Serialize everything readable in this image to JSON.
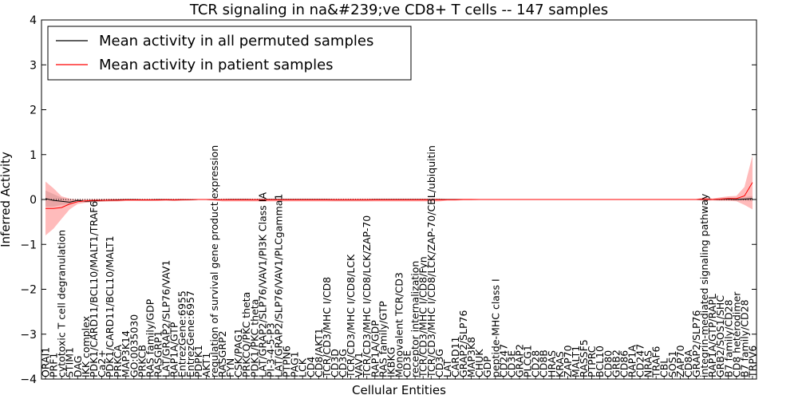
{
  "chart_data": {
    "type": "line",
    "title": "TCR signaling in na&#239;ve CD8+ T cells -- 147 samples",
    "xlabel": "Cellular Entities",
    "ylabel": "Inferred Activity",
    "ylim": [
      -4,
      4
    ],
    "yticks": [
      -4,
      -3,
      -2,
      -1,
      0,
      1,
      2,
      3,
      4
    ],
    "legend_position": "top-left",
    "categories": [
      "ORAI1",
      "PRF1",
      "cytotoxic T cell degranulation",
      "STIM1",
      "DAG",
      "IKK complex",
      "PDK1/CARD11/BCL10/MALT1/TRAF6",
      "Ca2+",
      "PDK1/CARD11/BCL10/MALT1",
      "PRKCA",
      "MAP3K14",
      "GO:0035030",
      "PRKCB",
      "RAS family/GDP",
      "RASGRP1",
      "LAT/GRAP2/SLP76/VAV1",
      "RAP1A/GTP",
      "EntrezGene:6955",
      "EntrezGene:6957",
      "PDPK1",
      "AKT1",
      "regulation of survival gene product expression",
      "RASGRP2",
      "FYN",
      "CSK/PAG1",
      "PRKCQ/PKC theta",
      "PDK1/PKC theta",
      "LAT/GRAP2/SLP76/VAV1/PI3K Class IA",
      "PI-3-4-5-P3",
      "LAT/GRAP2/SLP76/VAV1/PLCgamma1",
      "PTPN6",
      "PAG1",
      "LCK",
      "CD4",
      "CD8/AKT1",
      "TCR/CD3/MHC I/CD8",
      "CD3D",
      "CD3G",
      "TCR/CD3/MHC I/CD8/LCK",
      "VAV1",
      "TCR/CD3/MHC I/CD8/LCK/ZAP-70",
      "RAP1A/GDP",
      "RAS family/GTP",
      "IKBKG",
      "Monovalent TCR/CD3",
      "CD3E",
      "receptor internalization",
      "TCR/CD3/MHC I/CD8/Fyn",
      "TCR/CD3/MHC I/CD8/LCK/ZAP-70/CBL/ubiquitin",
      "CD3G",
      "LAT",
      "CARD11",
      "GRAP2/SLP76",
      "MAP3K8",
      "CHUK",
      "GDP",
      "peptide-MHC class I",
      "CD247",
      "CD3E",
      "GRAP2",
      "PLCG1",
      "CD28",
      "CD8B",
      "HRAS",
      "KRAS",
      "ZAP70",
      "MALT1",
      "RASSF5",
      "PTPRC",
      "BCL10",
      "CD80",
      "GRB2",
      "CD86",
      "RAP1A",
      "CD247",
      "NRAS",
      "TRAF6",
      "CBL",
      "SOS1",
      "ZAP70",
      "CD8A",
      "GRAP2/SLP76",
      "integrin-mediated signaling pathway",
      "RAP1A/GTP/RAPL",
      "GRB2/SOS1/SHC",
      "B7 family/CD28",
      "CD8 heterodimer",
      "B7 family/CD28",
      "TRPV6"
    ],
    "series": [
      {
        "name": "Mean activity in all permuted samples",
        "color": "#000000",
        "values": [
          0.02,
          -0.02,
          -0.04,
          -0.06,
          -0.02,
          -0.04,
          -0.03,
          -0.02,
          -0.015,
          -0.01,
          -0.005,
          -0.005,
          -0.01,
          -0.01,
          -0.005,
          -0.005,
          -0.01,
          -0.005,
          -0.005,
          0,
          0,
          -0.005,
          -0.01,
          -0.005,
          -0.005,
          -0.005,
          -0.01,
          -0.005,
          -0.005,
          -0.005,
          -0.005,
          -0.005,
          -0.005,
          -0.005,
          -0.005,
          -0.005,
          -0.01,
          -0.01,
          -0.01,
          -0.01,
          -0.01,
          -0.005,
          -0.005,
          -0.005,
          -0.005,
          -0.005,
          -0.005,
          -0.005,
          -0.005,
          -0.005,
          0,
          0,
          0,
          0,
          0,
          0,
          0,
          0,
          0,
          0,
          0,
          0,
          0,
          0,
          0,
          0,
          0,
          0,
          0,
          0,
          0,
          0,
          0,
          0,
          0,
          0,
          0,
          0,
          0,
          0,
          0,
          0,
          0.005,
          0,
          0.005,
          0.01,
          0,
          0.01,
          0.02
        ],
        "band": [
          0.18,
          0.14,
          0.08,
          0.05,
          0.03,
          0.03,
          0.03,
          0.03,
          0.025,
          0.02,
          0.02,
          0.02,
          0.02,
          0.02,
          0.02,
          0.015,
          0.02,
          0.015,
          0.01,
          0.005,
          0.005,
          0.01,
          0.015,
          0.015,
          0.015,
          0.015,
          0.015,
          0.015,
          0.015,
          0.015,
          0.015,
          0.015,
          0.015,
          0.015,
          0.015,
          0.015,
          0.02,
          0.02,
          0.02,
          0.02,
          0.02,
          0.015,
          0.015,
          0.015,
          0.015,
          0.015,
          0.015,
          0.015,
          0.015,
          0.015,
          0.01,
          0.01,
          0.01,
          0.01,
          0.01,
          0.01,
          0.005,
          0.005,
          0.005,
          0.005,
          0.005,
          0.005,
          0.005,
          0.005,
          0.005,
          0.005,
          0.005,
          0.005,
          0.005,
          0.005,
          0.005,
          0.005,
          0.005,
          0.005,
          0.005,
          0.005,
          0.005,
          0.005,
          0.005,
          0.005,
          0.005,
          0.005,
          0.02,
          0.01,
          0.02,
          0.03,
          0.02,
          0.04,
          0.06
        ]
      },
      {
        "name": "Mean activity in patient samples",
        "color": "#ff0000",
        "values": [
          -0.2,
          -0.2,
          -0.18,
          -0.1,
          -0.05,
          -0.03,
          -0.02,
          -0.02,
          -0.015,
          -0.015,
          -0.01,
          -0.01,
          -0.01,
          -0.01,
          -0.01,
          -0.005,
          -0.01,
          -0.005,
          -0.005,
          0,
          0,
          -0.005,
          -0.01,
          -0.01,
          -0.01,
          -0.01,
          -0.01,
          -0.01,
          -0.01,
          -0.01,
          -0.01,
          -0.01,
          -0.01,
          -0.01,
          -0.01,
          -0.01,
          -0.01,
          -0.01,
          -0.01,
          -0.01,
          -0.01,
          -0.01,
          -0.01,
          -0.01,
          -0.01,
          -0.01,
          -0.01,
          -0.01,
          -0.01,
          -0.01,
          -0.005,
          -0.005,
          0,
          0,
          0,
          0,
          0,
          0,
          0,
          0,
          0,
          0,
          0,
          0,
          0,
          0,
          0,
          0,
          0,
          0,
          0,
          0,
          0,
          0,
          0,
          0,
          0,
          0,
          0,
          0,
          0,
          0,
          0.01,
          0,
          0.01,
          0.02,
          0.02,
          0.08,
          0.38
        ],
        "band": [
          0.6,
          0.45,
          0.25,
          0.12,
          0.05,
          0.04,
          0.03,
          0.03,
          0.03,
          0.03,
          0.025,
          0.025,
          0.025,
          0.025,
          0.025,
          0.02,
          0.025,
          0.02,
          0.015,
          0.01,
          0.01,
          0.015,
          0.035,
          0.035,
          0.035,
          0.035,
          0.035,
          0.035,
          0.035,
          0.035,
          0.035,
          0.035,
          0.035,
          0.035,
          0.035,
          0.035,
          0.035,
          0.035,
          0.035,
          0.035,
          0.035,
          0.035,
          0.035,
          0.035,
          0.035,
          0.035,
          0.035,
          0.035,
          0.035,
          0.035,
          0.02,
          0.02,
          0.015,
          0.015,
          0.01,
          0.01,
          0.01,
          0.01,
          0.01,
          0.01,
          0.01,
          0.01,
          0.01,
          0.01,
          0.01,
          0.01,
          0.01,
          0.01,
          0.01,
          0.01,
          0.01,
          0.01,
          0.01,
          0.01,
          0.01,
          0.01,
          0.01,
          0.01,
          0.01,
          0.01,
          0.01,
          0.01,
          0.04,
          0.02,
          0.04,
          0.05,
          0.06,
          0.2,
          0.6
        ]
      }
    ]
  }
}
